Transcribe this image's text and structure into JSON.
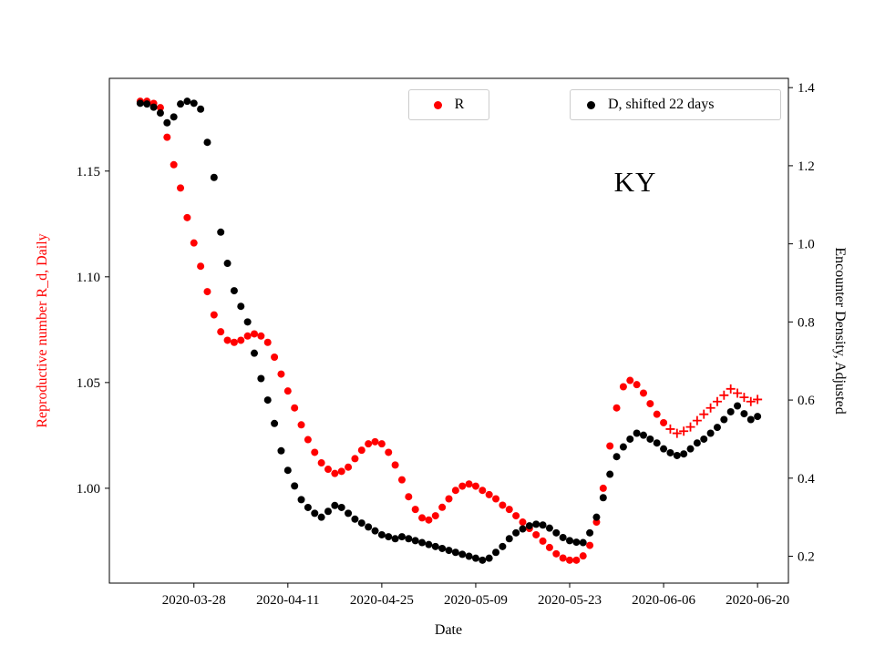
{
  "chart_data": {
    "type": "scatter",
    "annotation": "KY",
    "xlabel": "Date",
    "ylabel_left": "Reproductive number R_d, Daily",
    "ylabel_right": "Encounter Density, Adjusted",
    "x_tick_labels": [
      "2020-03-28",
      "2020-04-11",
      "2020-04-25",
      "2020-05-09",
      "2020-05-23",
      "2020-06-06",
      "2020-06-20"
    ],
    "left_tick_labels": [
      "1.00",
      "1.05",
      "1.10",
      "1.15"
    ],
    "right_tick_labels": [
      "0.2",
      "0.4",
      "0.6",
      "0.8",
      "1.0",
      "1.2",
      "1.4"
    ],
    "axis_color_left": "#ff0000",
    "axis_color_right": "#000000",
    "grid": false,
    "legend_entries": [
      {
        "label": "R",
        "color": "#ff0000",
        "marker": "dot"
      },
      {
        "label": "D, shifted 22 days",
        "color": "#000000",
        "marker": "dot"
      }
    ],
    "series": [
      {
        "name": "R",
        "axis": "left",
        "marker": "dot",
        "color": "#ff0000",
        "start": "2020-03-20",
        "cadence_days": 1,
        "values": [
          1.183,
          1.183,
          1.182,
          1.18,
          1.166,
          1.153,
          1.142,
          1.128,
          1.116,
          1.105,
          1.093,
          1.082,
          1.074,
          1.07,
          1.069,
          1.07,
          1.072,
          1.073,
          1.072,
          1.069,
          1.062,
          1.054,
          1.046,
          1.038,
          1.03,
          1.023,
          1.017,
          1.012,
          1.009,
          1.007,
          1.008,
          1.01,
          1.014,
          1.018,
          1.021,
          1.022,
          1.021,
          1.017,
          1.011,
          1.004,
          0.996,
          0.99,
          0.986,
          0.985,
          0.987,
          0.991,
          0.995,
          0.999,
          1.001,
          1.002,
          1.001,
          0.999,
          0.997,
          0.995,
          0.992,
          0.99,
          0.987,
          0.984,
          0.981,
          0.978,
          0.975,
          0.972,
          0.969,
          0.967,
          0.966,
          0.966,
          0.968,
          0.973,
          0.984,
          1.0,
          1.02,
          1.038,
          1.048,
          1.051,
          1.049,
          1.045,
          1.04,
          1.035,
          1.031
        ]
      },
      {
        "name": "R (recent, plus markers)",
        "axis": "left",
        "marker": "plus",
        "color": "#ff0000",
        "start": "2020-06-07",
        "cadence_days": 1,
        "values": [
          1.028,
          1.026,
          1.027,
          1.029,
          1.032,
          1.035,
          1.038,
          1.041,
          1.044,
          1.047,
          1.045,
          1.043,
          1.041,
          1.042
        ]
      },
      {
        "name": "D, shifted 22 days",
        "axis": "right",
        "marker": "dot",
        "color": "#000000",
        "start": "2020-03-20",
        "cadence_days": 1,
        "values": [
          1.36,
          1.358,
          1.35,
          1.335,
          1.31,
          1.325,
          1.358,
          1.365,
          1.36,
          1.345,
          1.26,
          1.17,
          1.03,
          0.95,
          0.88,
          0.84,
          0.8,
          0.72,
          0.655,
          0.6,
          0.54,
          0.47,
          0.42,
          0.38,
          0.345,
          0.325,
          0.31,
          0.3,
          0.315,
          0.33,
          0.325,
          0.31,
          0.295,
          0.285,
          0.275,
          0.265,
          0.255,
          0.25,
          0.245,
          0.25,
          0.245,
          0.24,
          0.235,
          0.23,
          0.225,
          0.22,
          0.215,
          0.21,
          0.205,
          0.2,
          0.195,
          0.19,
          0.195,
          0.21,
          0.225,
          0.245,
          0.26,
          0.27,
          0.278,
          0.282,
          0.28,
          0.272,
          0.26,
          0.248,
          0.24,
          0.236,
          0.235,
          0.26,
          0.3,
          0.35,
          0.41,
          0.455,
          0.48,
          0.5,
          0.515,
          0.51,
          0.5,
          0.49,
          0.475,
          0.465,
          0.458,
          0.462,
          0.475,
          0.49,
          0.5,
          0.515,
          0.53,
          0.55,
          0.57,
          0.585,
          0.565,
          0.55,
          0.558
        ]
      }
    ]
  }
}
